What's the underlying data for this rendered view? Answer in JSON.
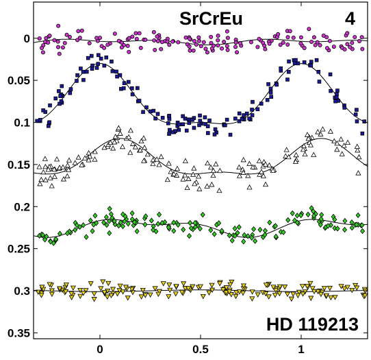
{
  "chart_data": {
    "type": "scatter",
    "title": "",
    "xlabel": "",
    "ylabel": "",
    "xlim": [
      -0.33,
      1.33
    ],
    "ylim": [
      0.357,
      -0.043
    ],
    "y_axis_inverted": true,
    "grid": false,
    "x_ticks": [
      {
        "value": 0,
        "label": "0"
      },
      {
        "value": 0.5,
        "label": "0.5"
      },
      {
        "value": 1,
        "label": "1"
      }
    ],
    "y_ticks": [
      {
        "value": 0,
        "label": "0"
      },
      {
        "value": 0.05,
        "label": "0.05"
      },
      {
        "value": 0.1,
        "label": "0.1"
      },
      {
        "value": 0.15,
        "label": "0.15"
      },
      {
        "value": 0.2,
        "label": "0.2"
      },
      {
        "value": 0.25,
        "label": "0.25"
      },
      {
        "value": 0.3,
        "label": "0.3"
      },
      {
        "value": 0.35,
        "label": "0.35"
      }
    ],
    "annotations": {
      "top_left": "SrCrEu",
      "top_right": "4",
      "bottom_right": "HD 119213"
    },
    "series": [
      {
        "marker": "circle",
        "color": "#cc33cc",
        "fit": {
          "offset": 0.004,
          "a1": -0.002,
          "p1": 0.0,
          "a2": -0.002,
          "p2": 0.6
        },
        "scatter": 0.006,
        "seed": 11
      },
      {
        "marker": "square",
        "color": "#1a1a99",
        "fit": {
          "offset": 0.077,
          "a1": -0.035,
          "p1": 0.0,
          "a2": -0.012,
          "p2": 0.0
        },
        "scatter": 0.007,
        "seed": 23
      },
      {
        "marker": "triangle-up",
        "color": "#ffffff",
        "fit": {
          "offset": 0.147,
          "a1": -0.02,
          "p1": 0.1,
          "a2": -0.008,
          "p2": 0.2
        },
        "scatter": 0.008,
        "seed": 37
      },
      {
        "marker": "diamond",
        "color": "#33cc22",
        "fit": {
          "offset": 0.224,
          "a1": -0.008,
          "p1": 0.2,
          "a2": -0.005,
          "p2": 0.0
        },
        "scatter": 0.006,
        "seed": 41
      },
      {
        "marker": "triangle-down",
        "color": "#e6d11a",
        "fit": {
          "offset": 0.3,
          "a1": 0.001,
          "p1": 0.0,
          "a2": 0.0,
          "p2": 0.0
        },
        "scatter": 0.005,
        "seed": 53
      }
    ]
  }
}
